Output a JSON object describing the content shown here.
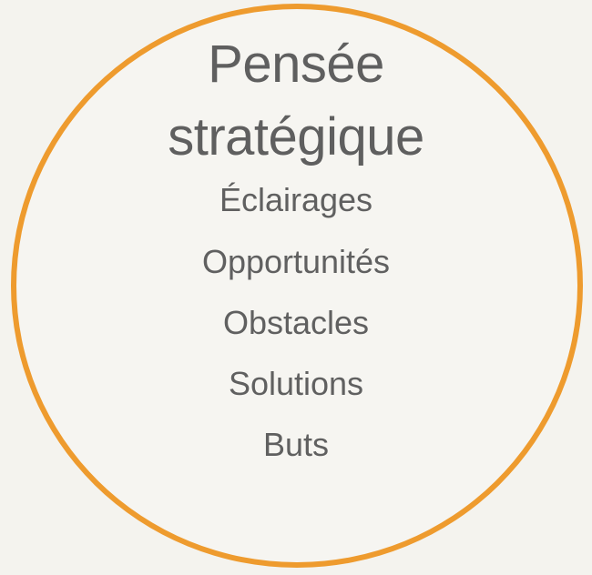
{
  "title": {
    "line1": "Pensée",
    "line2": "stratégique"
  },
  "items": [
    "Éclairages",
    "Opportunités",
    "Obstacles",
    "Solutions",
    "Buts"
  ],
  "colors": {
    "circle_border": "#ee9b2e",
    "text": "#5f5f5f",
    "background": "#f4f3ee"
  }
}
